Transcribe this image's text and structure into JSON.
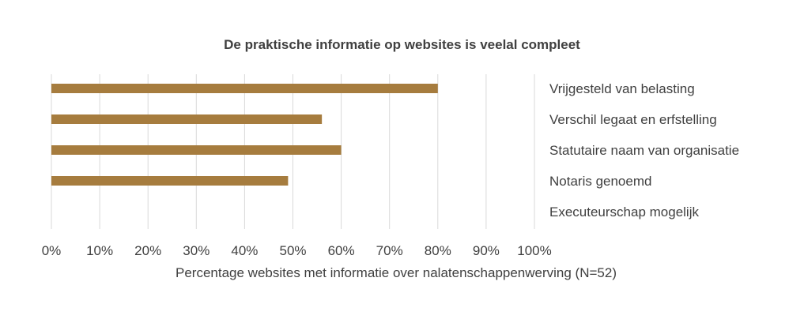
{
  "chart_data": {
    "type": "bar",
    "orientation": "horizontal",
    "title": "De praktische informatie op websites is veelal compleet",
    "xlabel": "Percentage websites met informatie over nalatenschappenwerving (N=52)",
    "ylabel": "",
    "categories": [
      "Vrijgesteld van belasting",
      "Verschil legaat en erfstelling",
      "Statutaire naam van organisatie",
      "Notaris genoemd",
      "Executeurschap mogelijk"
    ],
    "values": [
      80,
      56,
      60,
      49,
      0
    ],
    "xlim": [
      0,
      100
    ],
    "tick_labels": [
      "0%",
      "10%",
      "20%",
      "30%",
      "40%",
      "50%",
      "60%",
      "70%",
      "80%",
      "90%",
      "100%"
    ],
    "grid": "vertical",
    "bar_color": "#a67c3e",
    "grid_color": "#d9d9d9",
    "category_labels_position": "right"
  }
}
